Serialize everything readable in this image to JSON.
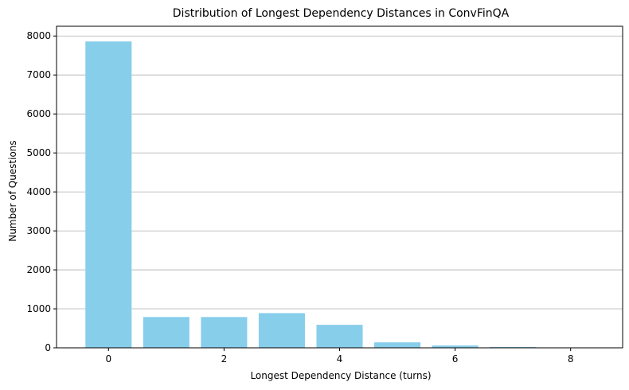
{
  "chart_data": {
    "type": "bar",
    "title": "Distribution of Longest Dependency Distances in ConvFinQA",
    "xlabel": "Longest Dependency Distance (turns)",
    "ylabel": "Number of Questions",
    "categories": [
      0,
      1,
      2,
      3,
      4,
      5,
      6,
      7,
      8
    ],
    "values": [
      7860,
      790,
      790,
      890,
      590,
      140,
      60,
      20,
      5
    ],
    "xlim": [
      -0.9,
      8.9
    ],
    "ylim": [
      0,
      8250
    ],
    "xticks": [
      0,
      2,
      4,
      6,
      8
    ],
    "yticks": [
      0,
      1000,
      2000,
      3000,
      4000,
      5000,
      6000,
      7000,
      8000
    ],
    "grid": "y-major",
    "colors": {
      "bar": "#87ceeb",
      "grid": "#b0b0b0",
      "axis": "#000000"
    }
  }
}
